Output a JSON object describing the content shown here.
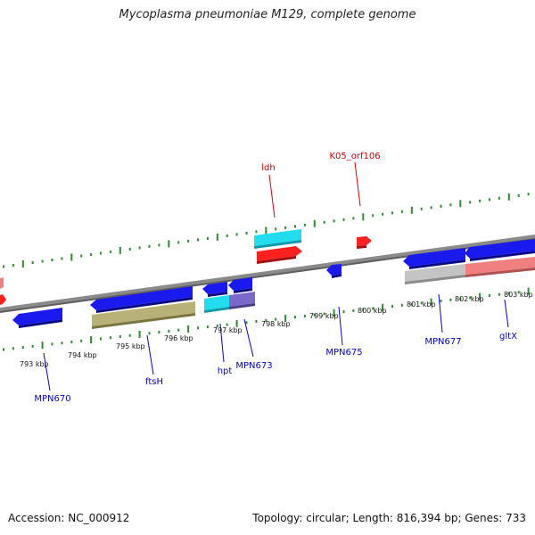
{
  "title": "Mycoplasma pneumoniae M129, complete genome",
  "footer": {
    "accession": "Accession: NC_000912",
    "topology": "Topology: circular; Length: 816,394 bp; Genes: 733"
  },
  "colors": {
    "background": "#ffffff",
    "backbone": "#7a7a7a",
    "tick": "#2e8b2e",
    "cds": "#1a1aee",
    "cds_alt": "#ff2020",
    "rna_cyan": "#22ddee",
    "label_blue": "#0000cc",
    "label_red": "#cc0000",
    "olive": "#b8b278",
    "grey": "#c4c4c4",
    "pink": "#f08080",
    "purple": "#7b68c8"
  },
  "scale_labels": [
    "793 kbp",
    "794 kbp",
    "795 kbp",
    "796 kbp",
    "797 kbp",
    "798 kbp",
    "799 kbp",
    "800 kbp",
    "801 kbp",
    "802 kbp",
    "803 kbp"
  ],
  "gene_labels_top": [
    {
      "text": "ldh",
      "color": "#cc0000"
    },
    {
      "text": "K05_orf106",
      "color": "#cc0000"
    }
  ],
  "gene_labels_bottom": [
    {
      "text": "MPN670",
      "color": "#0000cc"
    },
    {
      "text": "ftsH",
      "color": "#0000cc"
    },
    {
      "text": "hpt",
      "color": "#0000cc"
    },
    {
      "text": "MPN673",
      "color": "#0000cc"
    },
    {
      "text": "MPN675",
      "color": "#0000cc"
    },
    {
      "text": "MPN677",
      "color": "#0000cc"
    },
    {
      "text": "gltX",
      "color": "#0000cc"
    }
  ]
}
